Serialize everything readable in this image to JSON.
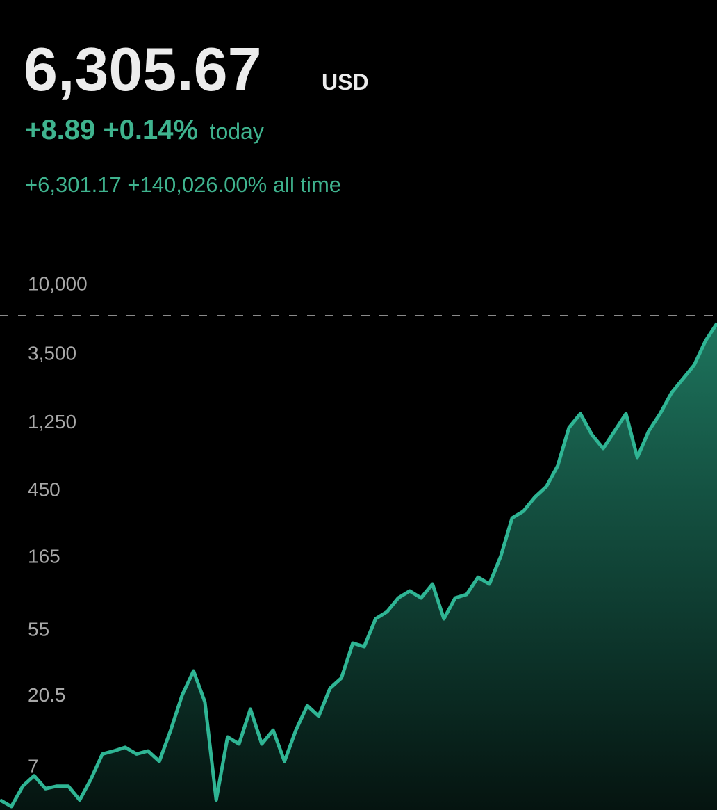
{
  "header": {
    "price": "6,305.67",
    "currency": "USD",
    "today_change": "+8.89 +0.14%",
    "today_label": "today",
    "all_time": "+6,301.17 +140,026.00% all time"
  },
  "chart_data": {
    "type": "line",
    "log_scale": true,
    "color": "#2fb594",
    "fill": true,
    "current_value": 6305.67,
    "values": [
      4.3,
      3.9,
      5.3,
      6.2,
      5.1,
      5.3,
      5.3,
      4.3,
      5.9,
      8.6,
      9.0,
      9.5,
      8.6,
      9.0,
      7.7,
      12.3,
      20.8,
      30,
      18.8,
      4.3,
      11.1,
      10,
      16.9,
      10,
      12.3,
      7.7,
      12.3,
      17.8,
      15.2,
      23.1,
      27,
      45.6,
      43.3,
      65.8,
      73.1,
      90.1,
      100,
      90.1,
      111,
      65.8,
      90.1,
      94.9,
      123,
      111,
      169,
      300,
      333,
      411,
      481,
      658,
      1170,
      1442,
      1054,
      855,
      1110,
      1442,
      746,
      1110,
      1442,
      1972,
      2434,
      3000,
      4329,
      5623
    ],
    "ylim": [
      3.7,
      10000
    ],
    "yticks": [
      {
        "value": 10000,
        "label": "10,000"
      },
      {
        "value": 3500,
        "label": "3,500"
      },
      {
        "value": 1250,
        "label": "1,250"
      },
      450,
      165,
      55,
      20.5,
      7
    ]
  }
}
